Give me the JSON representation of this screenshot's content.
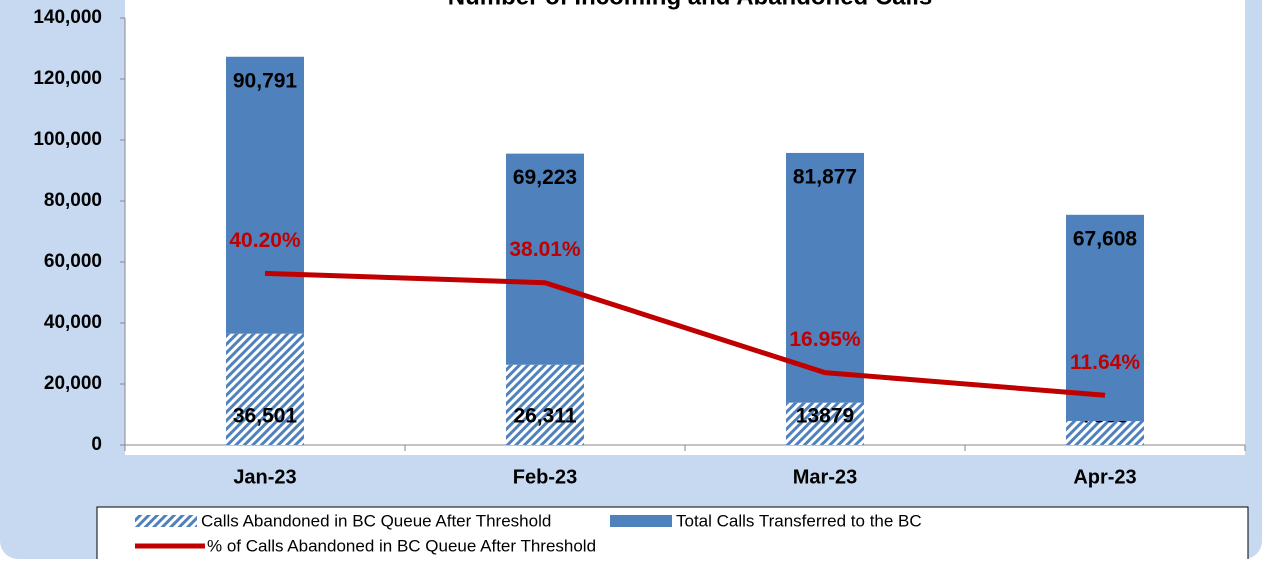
{
  "chart_data": {
    "type": "bar",
    "title": "Number of Incoming and Abandoned Calls",
    "categories": [
      "Jan-23",
      "Feb-23",
      "Mar-23",
      "Apr-23"
    ],
    "stacked": true,
    "series": [
      {
        "name": "Calls Abandoned in BC Queue After Threshold",
        "color": "#4f81bd",
        "pattern": "hatch",
        "values": [
          36501,
          26311,
          13879,
          7868
        ],
        "value_labels": [
          "36,501",
          "26,311",
          "13879",
          "7868"
        ]
      },
      {
        "name": "Total Calls Transferred to the BC",
        "color": "#4f81bd",
        "values": [
          90791,
          69223,
          81877,
          67608
        ],
        "value_labels": [
          "90,791",
          "69,223",
          "81,877",
          "67,608"
        ]
      },
      {
        "name": "% of Calls Abandoned in BC Queue After Threshold",
        "type": "line",
        "axis": "y2",
        "color": "#c00000",
        "values": [
          40.2,
          38.01,
          16.95,
          11.64
        ],
        "value_labels": [
          "40.20%",
          "38.01%",
          "16.95%",
          "11.64%"
        ]
      }
    ],
    "ylim": [
      0,
      140000
    ],
    "yticks": [
      0,
      {
        "value": 20000,
        "label": "20,000"
      },
      {
        "value": 40000,
        "label": "40,000"
      },
      {
        "value": 60000,
        "label": "60,000"
      },
      {
        "value": 80000,
        "label": "80,000"
      },
      {
        "value": 100000,
        "label": "100,000"
      },
      {
        "value": 120000,
        "label": "120,000"
      },
      {
        "value": 140000,
        "label": "140,000"
      }
    ],
    "y2lim": [
      0,
      100
    ],
    "legend": "bottom"
  }
}
